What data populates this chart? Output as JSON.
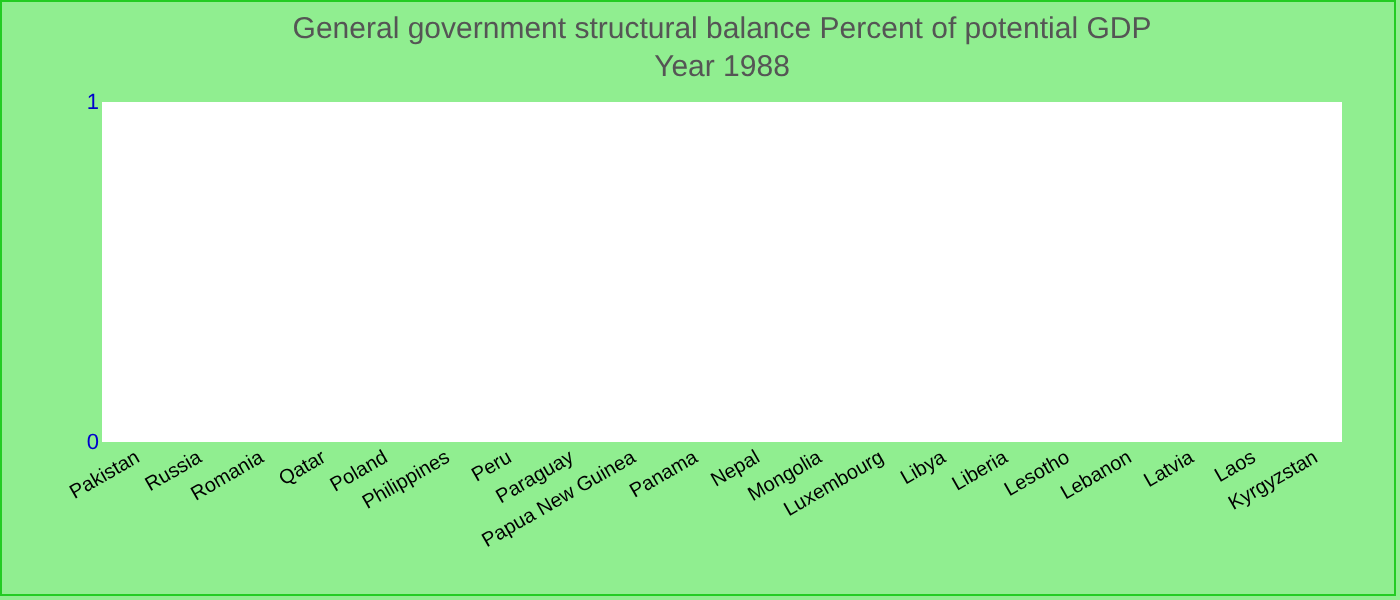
{
  "chart_data": {
    "type": "bar",
    "title": "General government structural balance  Percent of potential GDP",
    "subtitle": "Year 1988",
    "categories": [
      "Pakistan",
      "Russia",
      "Romania",
      "Qatar",
      "Poland",
      "Philippines",
      "Peru",
      "Paraguay",
      "Papua New Guinea",
      "Panama",
      "Nepal",
      "Mongolia",
      "Luxembourg",
      "Libya",
      "Liberia",
      "Lesotho",
      "Lebanon",
      "Latvia",
      "Laos",
      "Kyrgyzstan"
    ],
    "values": [
      null,
      null,
      null,
      null,
      null,
      null,
      null,
      null,
      null,
      null,
      null,
      null,
      null,
      null,
      null,
      null,
      null,
      null,
      null,
      null
    ],
    "ylim": [
      0,
      1
    ],
    "yticks": [
      0,
      1
    ],
    "grid": false
  }
}
